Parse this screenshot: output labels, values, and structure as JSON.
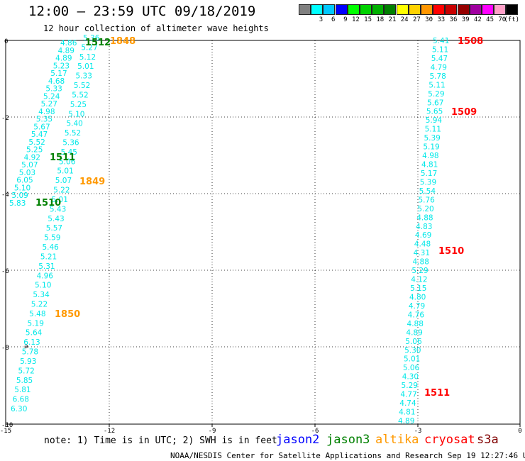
{
  "header": {
    "title": "12:00 – 23:59 UTC 09/18/2019",
    "subtitle": "12 hour collection of altimeter wave heights"
  },
  "color_scale": [
    {
      "label": "",
      "color": "#808080"
    },
    {
      "label": "3",
      "color": "#00ffff"
    },
    {
      "label": "6",
      "color": "#00c8ff"
    },
    {
      "label": "9",
      "color": "#0000ff"
    },
    {
      "label": "12",
      "color": "#00ff00"
    },
    {
      "label": "15",
      "color": "#00d200"
    },
    {
      "label": "18",
      "color": "#00b000"
    },
    {
      "label": "21",
      "color": "#008000"
    },
    {
      "label": "24",
      "color": "#ffff00"
    },
    {
      "label": "27",
      "color": "#ffd200"
    },
    {
      "label": "30",
      "color": "#ff9600"
    },
    {
      "label": "33",
      "color": "#ff0000"
    },
    {
      "label": "36",
      "color": "#c80000"
    },
    {
      "label": "39",
      "color": "#960000"
    },
    {
      "label": "42",
      "color": "#a000a0"
    },
    {
      "label": "45",
      "color": "#ff00ff"
    },
    {
      "label": "70",
      "color": "#ffa0c8"
    },
    {
      "label": "(ft)",
      "color": "#000000"
    }
  ],
  "axes": {
    "x_ticks": [
      "-15",
      "-12",
      "-9",
      "-6",
      "-3",
      "0"
    ],
    "y_ticks": [
      "0",
      "-2",
      "-4",
      "-6",
      "-8",
      "-10"
    ]
  },
  "track_west": {
    "color": "#00e8e8",
    "labels": [
      "4.86",
      "4.89",
      "4.89",
      "5.23",
      "5.17",
      "4.68",
      "5.33",
      "5.24",
      "5.27",
      "4.98",
      "5.35",
      "5.67",
      "5.47",
      "5.52",
      "5.25",
      "4.92",
      "5.07",
      "5.03",
      "6.05",
      "5.10",
      "5.09",
      "5.83"
    ]
  },
  "track_mid": {
    "color": "#00e8e8",
    "labels": [
      "5.36",
      "5.27",
      "5.12",
      "5.01",
      "5.33",
      "5.52",
      "5.52",
      "5.25",
      "5.10",
      "5.40",
      "5.52",
      "5.36",
      "5.45",
      "5.06",
      "5.01",
      "5.07",
      "5.22",
      "5.01",
      "5.43",
      "5.43",
      "5.57",
      "5.59",
      "5.46",
      "5.21",
      "5.31",
      "4.96",
      "5.10",
      "5.34",
      "5.22",
      "5.48",
      "5.19",
      "5.64",
      "6.13",
      "5.78",
      "5.93",
      "5.72",
      "5.85",
      "5.81",
      "6.68",
      "6.30"
    ]
  },
  "track_east": {
    "color": "#00e8e8",
    "labels": [
      "5.41",
      "5.11",
      "5.47",
      "4.79",
      "5.78",
      "5.11",
      "5.29",
      "5.67",
      "5.65",
      "5.94",
      "5.11",
      "5.39",
      "5.19",
      "4.98",
      "4.81",
      "5.17",
      "5.39",
      "5.54",
      "5.76",
      "5.20",
      "4.88",
      "4.83",
      "4.69",
      "4.48",
      "4.31",
      "4.88",
      "5.29",
      "4.12",
      "5.15",
      "4.80",
      "4.79",
      "4.76",
      "4.88",
      "4.89",
      "5.06",
      "5.30",
      "5.01",
      "5.06",
      "4.30",
      "5.29",
      "4.77",
      "4.74",
      "4.81",
      "4.89"
    ]
  },
  "time_labels": [
    {
      "text": "1848",
      "color": "#ff9900"
    },
    {
      "text": "1512",
      "color": "#008000"
    },
    {
      "text": "1511",
      "color": "#008000"
    },
    {
      "text": "1849",
      "color": "#ff9900"
    },
    {
      "text": "1510",
      "color": "#008000"
    },
    {
      "text": "1850",
      "color": "#ff9900"
    },
    {
      "text": "1508",
      "color": "#ff0000"
    },
    {
      "text": "1509",
      "color": "#ff0000"
    },
    {
      "text": "1510",
      "color": "#ff0000"
    },
    {
      "text": "1511",
      "color": "#ff0000"
    }
  ],
  "footer": {
    "note": "note:  1) Time is in UTC;  2) SWH is in feet",
    "satellites": [
      {
        "name": "jason2",
        "color": "#0000ff"
      },
      {
        "name": "jason3",
        "color": "#008000"
      },
      {
        "name": "altika",
        "color": "#ff9900"
      },
      {
        "name": "cryosat",
        "color": "#ff0000"
      },
      {
        "name": "s3a",
        "color": "#800000"
      }
    ],
    "credit": "NOAA/NESDIS Center for Satellite Applications and Research     Sep 19 12:27:46 UTC 2019"
  }
}
